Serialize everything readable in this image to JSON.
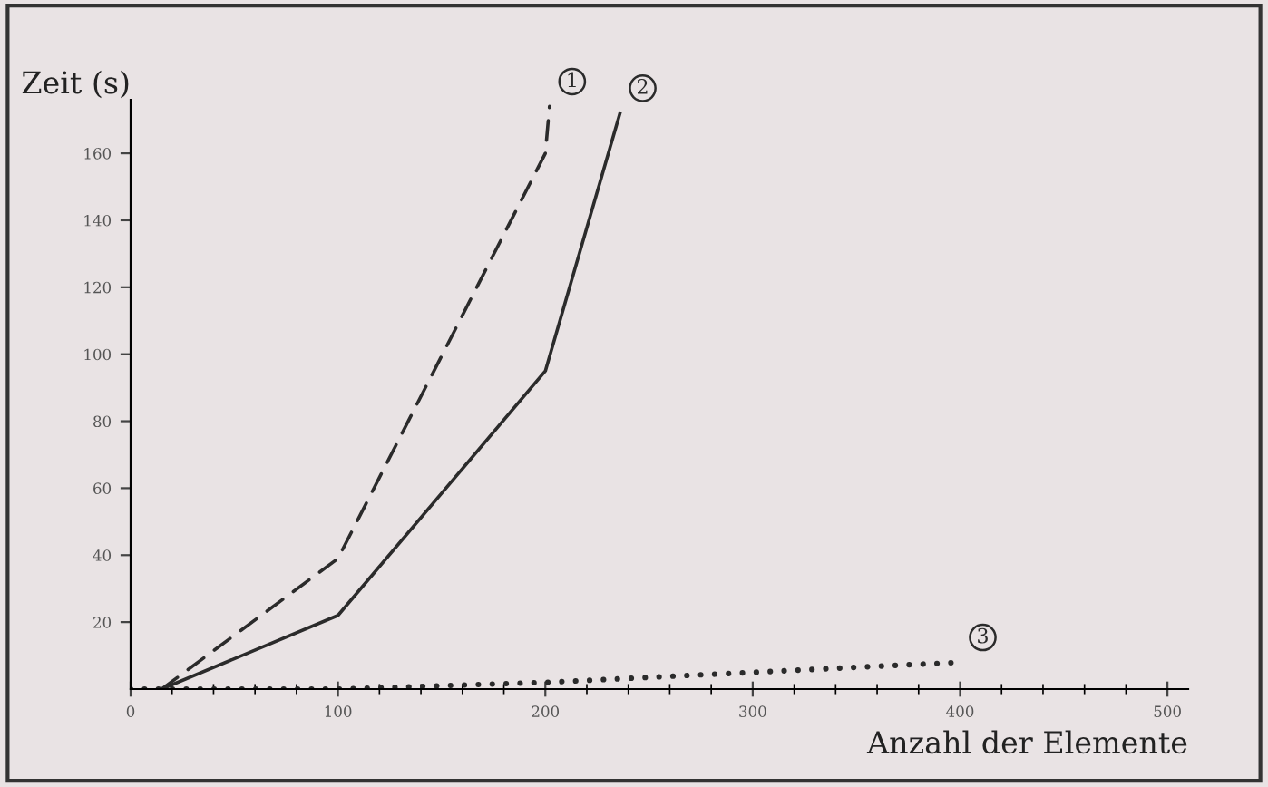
{
  "chart_data": {
    "type": "line",
    "xlabel": "Anzahl der Elemente",
    "ylabel": "Zeit (s)",
    "xlim": [
      0,
      510
    ],
    "ylim": [
      0,
      176
    ],
    "xticks": [
      0,
      100,
      200,
      300,
      400,
      500
    ],
    "yticks": [
      20,
      40,
      60,
      80,
      100,
      120,
      140,
      160
    ],
    "grid": false,
    "legend": false,
    "series": [
      {
        "name": "1",
        "color": "#2b2b2b",
        "line_style": "dashed",
        "x": [
          15,
          100,
          200,
          202
        ],
        "values": [
          0,
          39,
          160,
          174
        ]
      },
      {
        "name": "2",
        "color": "#2b2b2b",
        "line_style": "solid",
        "x": [
          15,
          100,
          200,
          236
        ],
        "values": [
          0,
          22,
          95,
          172
        ]
      },
      {
        "name": "3",
        "color": "#2b2b2b",
        "line_style": "dotted",
        "x": [
          0,
          100,
          200,
          300,
          400
        ],
        "values": [
          0,
          0,
          2,
          5,
          8
        ]
      }
    ]
  }
}
